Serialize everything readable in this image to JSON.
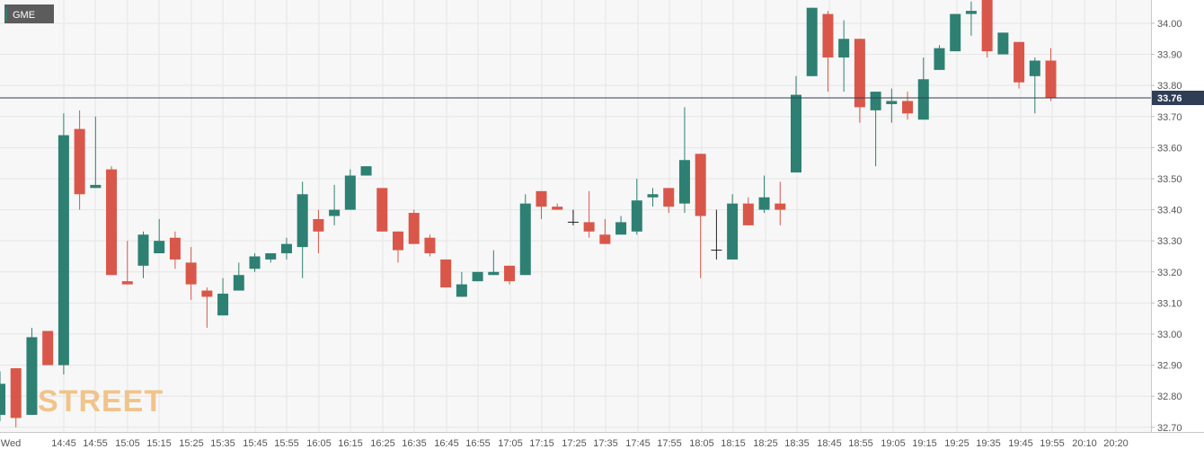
{
  "symbol": "GME",
  "watermark": "STREET",
  "current_price_label": "33.76",
  "colors": {
    "up": "#2e8072",
    "down": "#d9574a",
    "doji": "#222222",
    "price_line": "#2f3e55",
    "price_tag_bg": "#2f3e55",
    "symbol_bg": "#5c5c5c",
    "symbol_marker": "#2e8072",
    "grid": "#e6e6e6",
    "plot_bg": "#f7f7f7",
    "watermark": "#f0c48a"
  },
  "chart_data": {
    "type": "candlestick",
    "symbol": "GME",
    "interval_minutes": 5,
    "last_price": 33.76,
    "y_ticks": [
      "34.00",
      "33.90",
      "33.80",
      "33.70",
      "33.60",
      "33.50",
      "33.40",
      "33.30",
      "33.20",
      "33.10",
      "33.00",
      "32.90",
      "32.80",
      "32.70"
    ],
    "ylim": [
      32.685,
      34.075
    ],
    "x_ticks": [
      "Wed",
      "14:45",
      "14:55",
      "15:05",
      "15:15",
      "15:25",
      "15:35",
      "15:45",
      "15:55",
      "16:05",
      "16:15",
      "16:25",
      "16:35",
      "16:45",
      "16:55",
      "17:05",
      "17:15",
      "17:25",
      "17:35",
      "17:45",
      "17:55",
      "18:05",
      "18:15",
      "18:25",
      "18:35",
      "18:45",
      "18:55",
      "19:05",
      "19:15",
      "19:25",
      "19:35",
      "19:45",
      "19:55",
      "20:10",
      "20:20"
    ],
    "grid": true,
    "candles": [
      {
        "o": 32.74,
        "h": 32.88,
        "l": 32.72,
        "c": 32.84
      },
      {
        "o": 32.89,
        "h": 32.89,
        "l": 32.7,
        "c": 32.73
      },
      {
        "o": 32.74,
        "h": 33.02,
        "l": 32.74,
        "c": 32.99
      },
      {
        "o": 33.01,
        "h": 33.01,
        "l": 32.9,
        "c": 32.9
      },
      {
        "o": 32.9,
        "h": 33.71,
        "l": 32.87,
        "c": 33.64
      },
      {
        "o": 33.66,
        "h": 33.72,
        "l": 33.4,
        "c": 33.45
      },
      {
        "o": 33.47,
        "h": 33.7,
        "l": 33.47,
        "c": 33.48
      },
      {
        "o": 33.53,
        "h": 33.54,
        "l": 33.19,
        "c": 33.19
      },
      {
        "o": 33.17,
        "h": 33.3,
        "l": 33.16,
        "c": 33.16
      },
      {
        "o": 33.22,
        "h": 33.33,
        "l": 33.18,
        "c": 33.32
      },
      {
        "o": 33.26,
        "h": 33.37,
        "l": 33.26,
        "c": 33.3
      },
      {
        "o": 33.31,
        "h": 33.33,
        "l": 33.21,
        "c": 33.24
      },
      {
        "o": 33.23,
        "h": 33.28,
        "l": 33.11,
        "c": 33.16
      },
      {
        "o": 33.14,
        "h": 33.15,
        "l": 33.02,
        "c": 33.12
      },
      {
        "o": 33.06,
        "h": 33.18,
        "l": 33.06,
        "c": 33.13
      },
      {
        "o": 33.14,
        "h": 33.23,
        "l": 33.14,
        "c": 33.19
      },
      {
        "o": 33.21,
        "h": 33.26,
        "l": 33.2,
        "c": 33.25
      },
      {
        "o": 33.24,
        "h": 33.26,
        "l": 33.23,
        "c": 33.26
      },
      {
        "o": 33.26,
        "h": 33.31,
        "l": 33.24,
        "c": 33.29
      },
      {
        "o": 33.28,
        "h": 33.49,
        "l": 33.18,
        "c": 33.45
      },
      {
        "o": 33.37,
        "h": 33.4,
        "l": 33.26,
        "c": 33.33
      },
      {
        "o": 33.38,
        "h": 33.48,
        "l": 33.35,
        "c": 33.4
      },
      {
        "o": 33.4,
        "h": 33.53,
        "l": 33.4,
        "c": 33.51
      },
      {
        "o": 33.51,
        "h": 33.54,
        "l": 33.51,
        "c": 33.54
      },
      {
        "o": 33.47,
        "h": 33.47,
        "l": 33.33,
        "c": 33.33
      },
      {
        "o": 33.33,
        "h": 33.33,
        "l": 33.23,
        "c": 33.27
      },
      {
        "o": 33.39,
        "h": 33.4,
        "l": 33.29,
        "c": 33.29
      },
      {
        "o": 33.31,
        "h": 33.32,
        "l": 33.25,
        "c": 33.26
      },
      {
        "o": 33.24,
        "h": 33.24,
        "l": 33.15,
        "c": 33.15
      },
      {
        "o": 33.12,
        "h": 33.2,
        "l": 33.12,
        "c": 33.16
      },
      {
        "o": 33.17,
        "h": 33.2,
        "l": 33.17,
        "c": 33.2
      },
      {
        "o": 33.19,
        "h": 33.27,
        "l": 33.19,
        "c": 33.2
      },
      {
        "o": 33.22,
        "h": 33.22,
        "l": 33.16,
        "c": 33.17
      },
      {
        "o": 33.19,
        "h": 33.45,
        "l": 33.19,
        "c": 33.42
      },
      {
        "o": 33.46,
        "h": 33.46,
        "l": 33.37,
        "c": 33.41
      },
      {
        "o": 33.41,
        "h": 33.42,
        "l": 33.4,
        "c": 33.4
      },
      {
        "o": 33.36,
        "h": 33.4,
        "l": 33.35,
        "c": 33.36
      },
      {
        "o": 33.36,
        "h": 33.46,
        "l": 33.31,
        "c": 33.33
      },
      {
        "o": 33.32,
        "h": 33.37,
        "l": 33.29,
        "c": 33.29
      },
      {
        "o": 33.32,
        "h": 33.38,
        "l": 33.32,
        "c": 33.36
      },
      {
        "o": 33.33,
        "h": 33.5,
        "l": 33.32,
        "c": 33.43
      },
      {
        "o": 33.44,
        "h": 33.47,
        "l": 33.41,
        "c": 33.45
      },
      {
        "o": 33.47,
        "h": 33.47,
        "l": 33.39,
        "c": 33.41
      },
      {
        "o": 33.42,
        "h": 33.73,
        "l": 33.39,
        "c": 33.56
      },
      {
        "o": 33.58,
        "h": 33.58,
        "l": 33.18,
        "c": 33.38
      },
      {
        "o": 33.27,
        "h": 33.4,
        "l": 33.24,
        "c": 33.27
      },
      {
        "o": 33.24,
        "h": 33.45,
        "l": 33.24,
        "c": 33.42
      },
      {
        "o": 33.42,
        "h": 33.44,
        "l": 33.35,
        "c": 33.35
      },
      {
        "o": 33.4,
        "h": 33.51,
        "l": 33.39,
        "c": 33.44
      },
      {
        "o": 33.42,
        "h": 33.49,
        "l": 33.35,
        "c": 33.4
      },
      {
        "o": 33.52,
        "h": 33.83,
        "l": 33.52,
        "c": 33.77
      },
      {
        "o": 33.83,
        "h": 34.05,
        "l": 33.83,
        "c": 34.05
      },
      {
        "o": 34.03,
        "h": 34.04,
        "l": 33.78,
        "c": 33.89
      },
      {
        "o": 33.89,
        "h": 34.01,
        "l": 33.78,
        "c": 33.95
      },
      {
        "o": 33.95,
        "h": 33.95,
        "l": 33.68,
        "c": 33.73
      },
      {
        "o": 33.72,
        "h": 33.78,
        "l": 33.54,
        "c": 33.78
      },
      {
        "o": 33.74,
        "h": 33.79,
        "l": 33.68,
        "c": 33.75
      },
      {
        "o": 33.75,
        "h": 33.78,
        "l": 33.69,
        "c": 33.71
      },
      {
        "o": 33.69,
        "h": 33.89,
        "l": 33.69,
        "c": 33.82
      },
      {
        "o": 33.85,
        "h": 33.93,
        "l": 33.85,
        "c": 33.92
      },
      {
        "o": 33.91,
        "h": 34.03,
        "l": 33.91,
        "c": 34.03
      },
      {
        "o": 34.03,
        "h": 34.07,
        "l": 33.96,
        "c": 34.04
      },
      {
        "o": 34.08,
        "h": 34.08,
        "l": 33.89,
        "c": 33.91
      },
      {
        "o": 33.9,
        "h": 33.97,
        "l": 33.9,
        "c": 33.97
      },
      {
        "o": 33.94,
        "h": 33.94,
        "l": 33.79,
        "c": 33.81
      },
      {
        "o": 33.83,
        "h": 33.89,
        "l": 33.71,
        "c": 33.88
      },
      {
        "o": 33.88,
        "h": 33.92,
        "l": 33.75,
        "c": 33.76
      }
    ]
  }
}
